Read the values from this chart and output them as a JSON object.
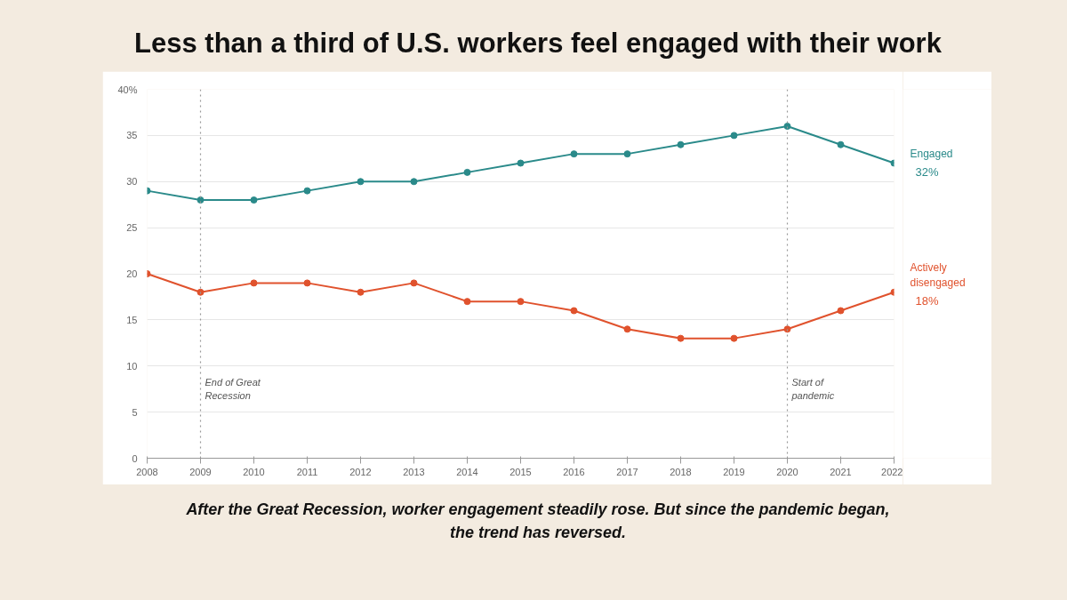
{
  "chart_data": {
    "type": "line",
    "title": "Less than a third of U.S. workers feel engaged with their work",
    "x": [
      2008,
      2009,
      2010,
      2011,
      2012,
      2013,
      2014,
      2015,
      2016,
      2017,
      2018,
      2019,
      2020,
      2021,
      2022
    ],
    "series": [
      {
        "name": "Engaged",
        "color": "#2a8a8a",
        "values": [
          29,
          28,
          28,
          29,
          30,
          30,
          31,
          32,
          33,
          33,
          34,
          35,
          36,
          34,
          32
        ],
        "value_labels": [
          null,
          null,
          null,
          null,
          null,
          null,
          null,
          null,
          null,
          null,
          null,
          null,
          null,
          null,
          "32%"
        ]
      },
      {
        "name": "Actively disengaged",
        "color": "#e0522d",
        "values": [
          20,
          18,
          19,
          19,
          18,
          19,
          17,
          17,
          16,
          14,
          13,
          13,
          14,
          16,
          18
        ],
        "value_labels": [
          null,
          null,
          null,
          null,
          null,
          null,
          null,
          null,
          null,
          null,
          null,
          null,
          null,
          null,
          "18%"
        ]
      }
    ],
    "xlim": [
      2008,
      2022
    ],
    "xticks": [
      2008,
      2009,
      2010,
      2011,
      2012,
      2013,
      2014,
      2015,
      2016,
      2017,
      2018,
      2019,
      2020,
      2021,
      2022
    ],
    "ylim": [
      0,
      40
    ],
    "yticks": [
      0,
      5,
      10,
      15,
      20,
      25,
      30,
      35,
      {
        "value": 40,
        "label": "40%"
      }
    ],
    "grid": "y",
    "marker": "circle",
    "line_style": "solid",
    "ref_lines": [
      {
        "axis": "x",
        "value": 2009,
        "label": "End of Great Recession",
        "color": "#999999",
        "line_style": "dotted"
      },
      {
        "axis": "x",
        "value": 2020,
        "label": "Start of pandemic",
        "color": "#999999",
        "line_style": "dotted"
      }
    ],
    "annotations": [
      "After the Great Recession, worker engagement steadily rose. But since the pandemic began, the trend has reversed."
    ]
  }
}
